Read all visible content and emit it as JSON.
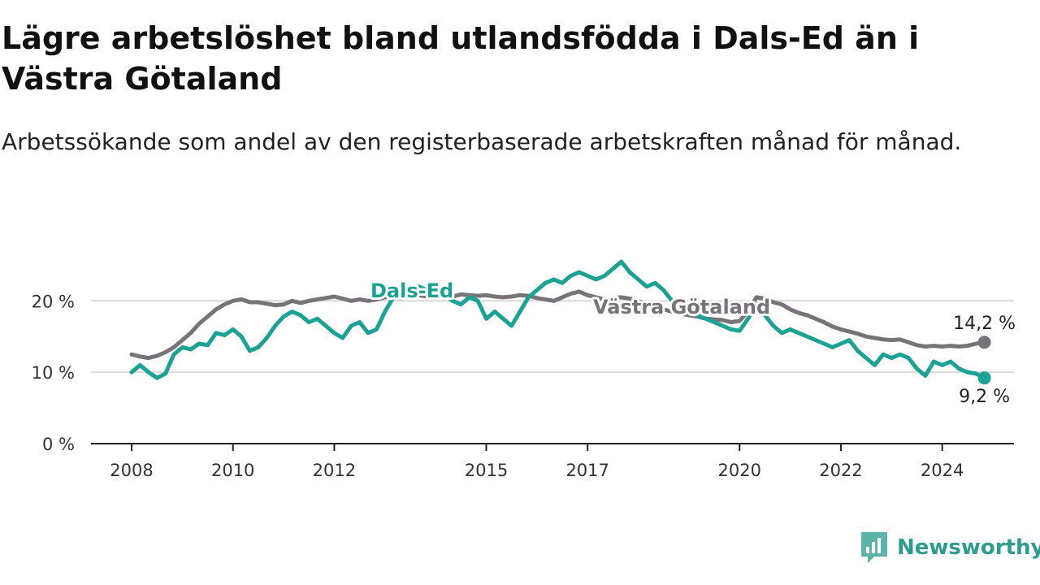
{
  "page": {
    "title": "Lägre arbetslöshet bland utlandsfödda i Dals-Ed än i Västra Götaland",
    "subtitle": "Arbetssökande som andel av den registerbaserade arbetskraften månad för månad."
  },
  "brand": {
    "name": "Newsworthy",
    "icon": "newsworthy-logo-icon",
    "color": "#5cb3a8"
  },
  "chart_data": {
    "type": "line",
    "title": "Lägre arbetslöshet bland utlandsfödda i Dals-Ed än i Västra Götaland",
    "subtitle": "Arbetssökande som andel av den registerbaserade arbetskraften månad för månad.",
    "x_ticks": [
      "2008",
      "2010",
      "2012",
      "2015",
      "2017",
      "2020",
      "2022",
      "2024"
    ],
    "y_ticks": [
      "0 %",
      "10 %",
      "20 %"
    ],
    "xlim": [
      "2008-01",
      "2025-01"
    ],
    "ylim": [
      0,
      28
    ],
    "grid": true,
    "series": [
      {
        "name": "Dals-Ed",
        "color": "#1aa394",
        "end_label": "9,2 %",
        "points": [
          [
            "2008-01",
            10.0
          ],
          [
            "2008-03",
            11.0
          ],
          [
            "2008-05",
            10.0
          ],
          [
            "2008-07",
            9.2
          ],
          [
            "2008-09",
            9.8
          ],
          [
            "2008-11",
            12.5
          ],
          [
            "2009-01",
            13.5
          ],
          [
            "2009-03",
            13.2
          ],
          [
            "2009-05",
            14.0
          ],
          [
            "2009-07",
            13.8
          ],
          [
            "2009-09",
            15.5
          ],
          [
            "2009-11",
            15.2
          ],
          [
            "2010-01",
            16.0
          ],
          [
            "2010-03",
            15.0
          ],
          [
            "2010-05",
            13.0
          ],
          [
            "2010-07",
            13.5
          ],
          [
            "2010-09",
            14.8
          ],
          [
            "2010-11",
            16.5
          ],
          [
            "2011-01",
            17.8
          ],
          [
            "2011-03",
            18.5
          ],
          [
            "2011-05",
            18.0
          ],
          [
            "2011-07",
            17.0
          ],
          [
            "2011-09",
            17.5
          ],
          [
            "2011-11",
            16.5
          ],
          [
            "2012-01",
            15.5
          ],
          [
            "2012-03",
            14.8
          ],
          [
            "2012-05",
            16.5
          ],
          [
            "2012-07",
            17.0
          ],
          [
            "2012-09",
            15.5
          ],
          [
            "2012-11",
            16.0
          ],
          [
            "2013-01",
            18.5
          ],
          [
            "2013-03",
            20.5
          ],
          [
            "2013-05",
            21.0
          ],
          [
            "2013-07",
            21.5
          ],
          [
            "2013-09",
            22.0
          ],
          [
            "2013-11",
            21.5
          ],
          [
            "2014-01",
            22.5
          ],
          [
            "2014-03",
            21.0
          ],
          [
            "2014-05",
            20.0
          ],
          [
            "2014-07",
            19.5
          ],
          [
            "2014-09",
            20.5
          ],
          [
            "2014-11",
            20.0
          ],
          [
            "2015-01",
            17.5
          ],
          [
            "2015-03",
            18.5
          ],
          [
            "2015-05",
            17.5
          ],
          [
            "2015-07",
            16.5
          ],
          [
            "2015-09",
            18.5
          ],
          [
            "2015-11",
            20.5
          ],
          [
            "2016-01",
            21.5
          ],
          [
            "2016-03",
            22.5
          ],
          [
            "2016-05",
            23.0
          ],
          [
            "2016-07",
            22.5
          ],
          [
            "2016-09",
            23.5
          ],
          [
            "2016-11",
            24.0
          ],
          [
            "2017-01",
            23.5
          ],
          [
            "2017-03",
            23.0
          ],
          [
            "2017-05",
            23.5
          ],
          [
            "2017-07",
            24.5
          ],
          [
            "2017-09",
            25.5
          ],
          [
            "2017-11",
            24.0
          ],
          [
            "2018-01",
            23.0
          ],
          [
            "2018-03",
            22.0
          ],
          [
            "2018-05",
            22.5
          ],
          [
            "2018-07",
            21.5
          ],
          [
            "2018-09",
            20.0
          ],
          [
            "2018-11",
            19.5
          ],
          [
            "2019-01",
            18.5
          ],
          [
            "2019-03",
            18.0
          ],
          [
            "2019-05",
            17.5
          ],
          [
            "2019-07",
            17.0
          ],
          [
            "2019-09",
            16.5
          ],
          [
            "2019-11",
            16.0
          ],
          [
            "2020-01",
            15.8
          ],
          [
            "2020-03",
            17.5
          ],
          [
            "2020-05",
            19.5
          ],
          [
            "2020-07",
            18.0
          ],
          [
            "2020-09",
            16.5
          ],
          [
            "2020-11",
            15.5
          ],
          [
            "2021-01",
            16.0
          ],
          [
            "2021-03",
            15.5
          ],
          [
            "2021-05",
            15.0
          ],
          [
            "2021-07",
            14.5
          ],
          [
            "2021-09",
            14.0
          ],
          [
            "2021-11",
            13.5
          ],
          [
            "2022-01",
            14.0
          ],
          [
            "2022-03",
            14.5
          ],
          [
            "2022-05",
            13.0
          ],
          [
            "2022-07",
            12.0
          ],
          [
            "2022-09",
            11.0
          ],
          [
            "2022-11",
            12.5
          ],
          [
            "2023-01",
            12.0
          ],
          [
            "2023-03",
            12.5
          ],
          [
            "2023-05",
            12.0
          ],
          [
            "2023-07",
            10.5
          ],
          [
            "2023-09",
            9.5
          ],
          [
            "2023-11",
            11.5
          ],
          [
            "2024-01",
            11.0
          ],
          [
            "2024-03",
            11.5
          ],
          [
            "2024-05",
            10.5
          ],
          [
            "2024-07",
            10.0
          ],
          [
            "2024-09",
            9.8
          ],
          [
            "2024-11",
            9.2
          ]
        ]
      },
      {
        "name": "Västra Götaland",
        "color": "#777379",
        "end_label": "14,2 %",
        "points": [
          [
            "2008-01",
            12.5
          ],
          [
            "2008-03",
            12.2
          ],
          [
            "2008-05",
            12.0
          ],
          [
            "2008-07",
            12.3
          ],
          [
            "2008-09",
            12.8
          ],
          [
            "2008-11",
            13.5
          ],
          [
            "2009-01",
            14.5
          ],
          [
            "2009-03",
            15.5
          ],
          [
            "2009-05",
            16.8
          ],
          [
            "2009-07",
            17.8
          ],
          [
            "2009-09",
            18.8
          ],
          [
            "2009-11",
            19.5
          ],
          [
            "2010-01",
            20.0
          ],
          [
            "2010-03",
            20.2
          ],
          [
            "2010-05",
            19.8
          ],
          [
            "2010-07",
            19.8
          ],
          [
            "2010-09",
            19.6
          ],
          [
            "2010-11",
            19.4
          ],
          [
            "2011-01",
            19.5
          ],
          [
            "2011-03",
            20.0
          ],
          [
            "2011-05",
            19.7
          ],
          [
            "2011-07",
            20.0
          ],
          [
            "2011-09",
            20.2
          ],
          [
            "2011-11",
            20.4
          ],
          [
            "2012-01",
            20.6
          ],
          [
            "2012-03",
            20.3
          ],
          [
            "2012-05",
            20.0
          ],
          [
            "2012-07",
            20.2
          ],
          [
            "2012-09",
            20.0
          ],
          [
            "2012-11",
            20.2
          ],
          [
            "2013-01",
            20.5
          ],
          [
            "2013-03",
            20.6
          ],
          [
            "2013-05",
            20.4
          ],
          [
            "2013-07",
            20.6
          ],
          [
            "2013-09",
            20.8
          ],
          [
            "2013-11",
            20.6
          ],
          [
            "2014-01",
            20.8
          ],
          [
            "2014-03",
            20.7
          ],
          [
            "2014-05",
            20.6
          ],
          [
            "2014-07",
            20.9
          ],
          [
            "2014-09",
            20.8
          ],
          [
            "2014-11",
            20.7
          ],
          [
            "2015-01",
            20.8
          ],
          [
            "2015-03",
            20.6
          ],
          [
            "2015-05",
            20.5
          ],
          [
            "2015-07",
            20.6
          ],
          [
            "2015-09",
            20.8
          ],
          [
            "2015-11",
            20.7
          ],
          [
            "2016-01",
            20.4
          ],
          [
            "2016-03",
            20.2
          ],
          [
            "2016-05",
            20.0
          ],
          [
            "2016-07",
            20.5
          ],
          [
            "2016-09",
            21.0
          ],
          [
            "2016-11",
            21.3
          ],
          [
            "2017-01",
            20.8
          ],
          [
            "2017-03",
            20.5
          ],
          [
            "2017-05",
            20.2
          ],
          [
            "2017-07",
            20.4
          ],
          [
            "2017-09",
            20.5
          ],
          [
            "2017-11",
            20.3
          ],
          [
            "2018-01",
            20.0
          ],
          [
            "2018-03",
            19.5
          ],
          [
            "2018-05",
            19.0
          ],
          [
            "2018-07",
            18.8
          ],
          [
            "2018-09",
            18.5
          ],
          [
            "2018-11",
            18.2
          ],
          [
            "2019-01",
            18.0
          ],
          [
            "2019-03",
            17.8
          ],
          [
            "2019-05",
            17.5
          ],
          [
            "2019-07",
            17.4
          ],
          [
            "2019-09",
            17.3
          ],
          [
            "2019-11",
            17.0
          ],
          [
            "2020-01",
            17.2
          ],
          [
            "2020-03",
            18.5
          ],
          [
            "2020-05",
            20.5
          ],
          [
            "2020-07",
            20.3
          ],
          [
            "2020-09",
            19.8
          ],
          [
            "2020-11",
            19.5
          ],
          [
            "2021-01",
            18.8
          ],
          [
            "2021-03",
            18.3
          ],
          [
            "2021-05",
            18.0
          ],
          [
            "2021-07",
            17.5
          ],
          [
            "2021-09",
            17.0
          ],
          [
            "2021-11",
            16.4
          ],
          [
            "2022-01",
            16.0
          ],
          [
            "2022-03",
            15.7
          ],
          [
            "2022-05",
            15.4
          ],
          [
            "2022-07",
            15.0
          ],
          [
            "2022-09",
            14.8
          ],
          [
            "2022-11",
            14.6
          ],
          [
            "2023-01",
            14.5
          ],
          [
            "2023-03",
            14.6
          ],
          [
            "2023-05",
            14.2
          ],
          [
            "2023-07",
            13.8
          ],
          [
            "2023-09",
            13.6
          ],
          [
            "2023-11",
            13.7
          ],
          [
            "2024-01",
            13.6
          ],
          [
            "2024-03",
            13.7
          ],
          [
            "2024-05",
            13.6
          ],
          [
            "2024-07",
            13.7
          ],
          [
            "2024-09",
            14.0
          ],
          [
            "2024-11",
            14.2
          ]
        ]
      }
    ]
  }
}
